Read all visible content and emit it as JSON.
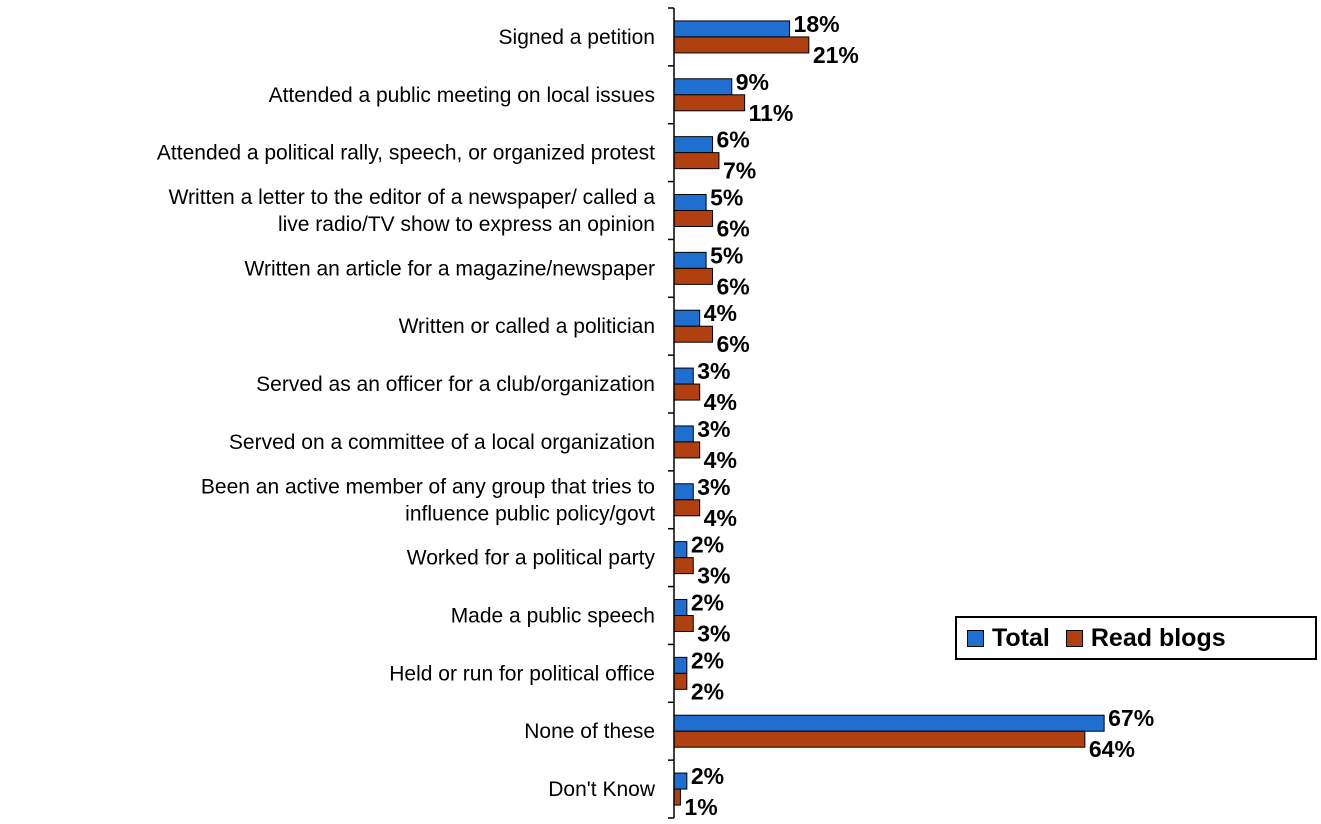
{
  "chart_data": {
    "type": "bar",
    "orientation": "horizontal",
    "categories": [
      [
        "Signed a petition"
      ],
      [
        "Attended a public meeting on local issues"
      ],
      [
        "Attended a political rally, speech, or organized protest"
      ],
      [
        "Written a letter to the editor of a newspaper/ called a",
        "live radio/TV show to express an opinion"
      ],
      [
        "Written an article for a magazine/newspaper"
      ],
      [
        "Written or called a politician"
      ],
      [
        "Served as an officer for a club/organization"
      ],
      [
        "Served on a committee of a local organization"
      ],
      [
        "Been an active member of any group that tries to",
        "influence public policy/govt"
      ],
      [
        "Worked for a political party"
      ],
      [
        "Made a public speech"
      ],
      [
        "Held or run for political office"
      ],
      [
        "None of these"
      ],
      [
        "Don't Know"
      ]
    ],
    "series": [
      {
        "name": "Total",
        "color": "#1f6fd1",
        "values": [
          18,
          9,
          6,
          5,
          5,
          4,
          3,
          3,
          3,
          2,
          2,
          2,
          67,
          2
        ],
        "labels": [
          "18%",
          "9%",
          "6%",
          "5%",
          "5%",
          "4%",
          "3%",
          "3%",
          "3%",
          "2%",
          "2%",
          "2%",
          "67%",
          "2%"
        ]
      },
      {
        "name": "Read blogs",
        "color": "#b0400f",
        "values": [
          21,
          11,
          7,
          6,
          6,
          6,
          4,
          4,
          4,
          3,
          3,
          2,
          64,
          1
        ],
        "labels": [
          "21%",
          "11%",
          "7%",
          "6%",
          "6%",
          "6%",
          "4%",
          "4%",
          "4%",
          "3%",
          "3%",
          "2%",
          "64%",
          "1%"
        ]
      }
    ],
    "legend_position": "right",
    "grid": false
  }
}
